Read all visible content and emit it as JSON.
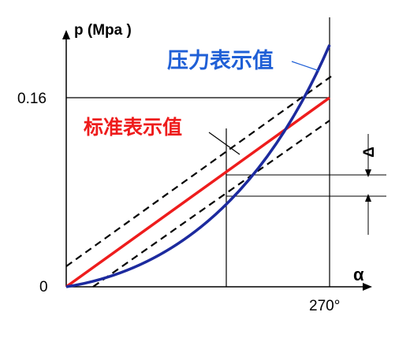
{
  "axes": {
    "y_label": "p (Mpa )",
    "x_label": "α",
    "y_tick_top": "0.16",
    "origin": "0",
    "x_tick_end": "270°"
  },
  "labels": {
    "pressure_curve": "压力表示值",
    "standard_line": "标准表示值",
    "delta": "Δ"
  },
  "colors": {
    "pressure_curve": "#1c2a9e",
    "standard_line": "#ee1c1c",
    "pressure_label": "#1f5fd6",
    "standard_label": "#ee1c1c",
    "tolerance_lines": "#000000"
  }
}
